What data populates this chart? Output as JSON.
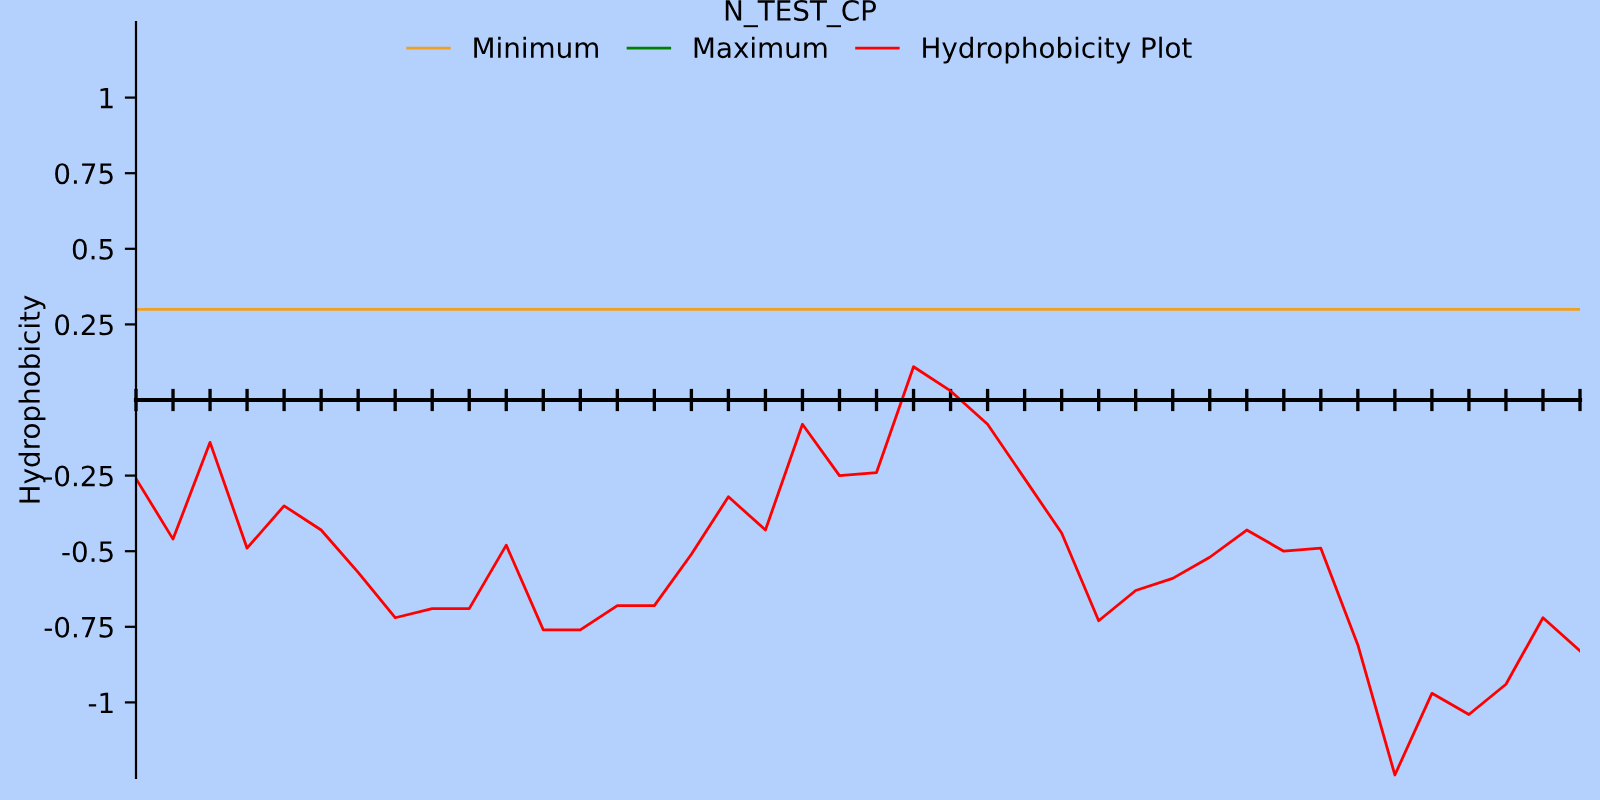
{
  "chart_data": {
    "type": "line",
    "title": "N_TEST_CP",
    "ylabel": "Hydrophobicity",
    "categories": [
      null,
      null,
      null,
      null,
      null,
      null,
      null,
      null,
      null,
      null,
      null,
      null,
      null,
      null,
      null,
      null,
      null,
      null,
      null,
      null,
      null,
      null,
      null,
      null,
      null,
      null,
      null,
      null,
      null,
      null,
      null,
      null,
      null,
      null,
      null,
      null,
      null,
      null,
      null,
      null
    ],
    "series": [
      {
        "name": "Minimum",
        "color": "#f0a020",
        "values": [
          0.3,
          0.3,
          0.3,
          0.3,
          0.3,
          0.3,
          0.3,
          0.3,
          0.3,
          0.3,
          0.3,
          0.3,
          0.3,
          0.3,
          0.3,
          0.3,
          0.3,
          0.3,
          0.3,
          0.3,
          0.3,
          0.3,
          0.3,
          0.3,
          0.3,
          0.3,
          0.3,
          0.3,
          0.3,
          0.3,
          0.3,
          0.3,
          0.3,
          0.3,
          0.3,
          0.3,
          0.3,
          0.3,
          0.3,
          0.3
        ]
      },
      {
        "name": "Maximum",
        "color": "#008000",
        "values": [
          null,
          null,
          null,
          null,
          null,
          null,
          null,
          null,
          null,
          null,
          null,
          null,
          null,
          null,
          null,
          null,
          null,
          null,
          null,
          null,
          null,
          null,
          null,
          null,
          null,
          null,
          null,
          null,
          null,
          null,
          null,
          null,
          null,
          null,
          null,
          null,
          null,
          null,
          null,
          null
        ]
      },
      {
        "name": "Hydrophobicity Plot",
        "color": "#ff0000",
        "values": [
          -0.26,
          -0.46,
          -0.14,
          -0.49,
          -0.35,
          -0.43,
          -0.57,
          -0.72,
          -0.69,
          -0.69,
          -0.48,
          -0.76,
          -0.76,
          -0.68,
          -0.68,
          -0.51,
          -0.32,
          -0.43,
          -0.08,
          -0.25,
          -0.24,
          0.11,
          0.03,
          -0.08,
          -0.26,
          -0.44,
          -0.73,
          -0.63,
          -0.59,
          -0.52,
          -0.43,
          -0.5,
          -0.49,
          -0.81,
          -1.24,
          -0.97,
          -1.04,
          -0.94,
          -0.72,
          -0.83
        ]
      }
    ],
    "ylim": [
      -1.25,
      1.25
    ],
    "yticks": [
      1,
      0.75,
      0.5,
      0.25,
      -0.25,
      -0.5,
      -0.75,
      -1
    ],
    "tick_labels": "y",
    "legend": "top",
    "grid": false,
    "marker": "none",
    "line_style": "solid"
  }
}
